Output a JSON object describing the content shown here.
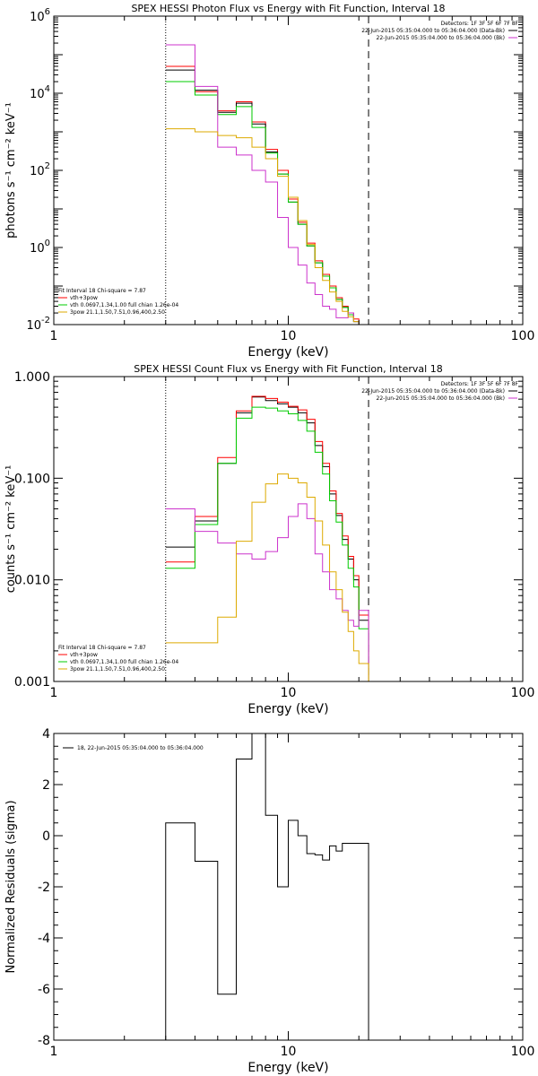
{
  "chart_data": [
    {
      "type": "line",
      "title": "SPEX HESSI Photon Flux vs Energy with Fit Function, Interval 18",
      "xlabel": "Energy (keV)",
      "ylabel": "photons s⁻¹ cm⁻² keV⁻¹",
      "xscale": "log",
      "yscale": "log",
      "xlim": [
        1,
        100
      ],
      "ylim": [
        0.01,
        1000000
      ],
      "xticks": [
        {
          "v": 1,
          "label": "1"
        },
        {
          "v": 10,
          "label": "10"
        },
        {
          "v": 100,
          "label": "100"
        }
      ],
      "yticks": [
        {
          "v": 0.01,
          "base": "10",
          "exp": "-2"
        },
        {
          "v": 1,
          "base": "10",
          "exp": "0"
        },
        {
          "v": 100,
          "base": "10",
          "exp": "2"
        },
        {
          "v": 10000,
          "base": "10",
          "exp": "4"
        },
        {
          "v": 1000000,
          "base": "10",
          "exp": "6"
        }
      ],
      "vlines": [
        {
          "x": 3.0,
          "style": "dotted"
        },
        {
          "x": 22.0,
          "style": "dashed"
        }
      ],
      "edges": [
        3.0,
        4.0,
        5.0,
        6.0,
        7.0,
        8.0,
        9.0,
        10.0,
        11.0,
        12.0,
        13.0,
        14.0,
        15.0,
        16.0,
        17.0,
        18.0,
        19.0,
        20.0,
        22.0
      ],
      "series": [
        {
          "color": "#ff0000",
          "values": [
            50000,
            11000,
            3500,
            6000,
            1800,
            350,
            100,
            18,
            4.5,
            1.3,
            0.45,
            0.2,
            0.1,
            0.05,
            0.03,
            0.02,
            0.014,
            0.009
          ]
        },
        {
          "color": "#000000",
          "values": [
            40000,
            12000,
            3200,
            5500,
            1600,
            300,
            80,
            15,
            4.0,
            1.1,
            0.4,
            0.18,
            0.09,
            0.045,
            0.028,
            0.018,
            0.012,
            0.008
          ]
        },
        {
          "color": "#00cc00",
          "values": [
            20000,
            9000,
            2800,
            4500,
            1300,
            280,
            80,
            15,
            4.0,
            1.1,
            0.4,
            0.18,
            0.09,
            0.045,
            0.028,
            0.018,
            0.012,
            0.006
          ]
        },
        {
          "color": "#cc33cc",
          "values": [
            180000,
            15000,
            400,
            250,
            100,
            50,
            6,
            1.0,
            0.35,
            0.12,
            0.06,
            0.03,
            0.025,
            0.015,
            0.015,
            0.02,
            0.012,
            0.009
          ]
        },
        {
          "color": "#ddaa00",
          "values": [
            1200,
            1000,
            800,
            700,
            400,
            200,
            70,
            20,
            5.0,
            1.2,
            0.3,
            0.14,
            0.07,
            0.04,
            0.022,
            0.016,
            0.012,
            0.008
          ]
        }
      ],
      "legend_left": [
        "Fit Interval 18   Chi-square = 7.87",
        "vth+3pow",
        "vth 0.0697,1.34,1.00  full chian 1.26e-04",
        "3pow 21.1,1.50,7.51,0.96,400,2.50"
      ],
      "legend_left_colors": [
        "#000000",
        "#ff0000",
        "#00cc00",
        "#ddaa00"
      ],
      "legend_right": [
        "Detectors: 1F 3F 5F 6F 7F 8F",
        "22-Jun-2015 05:35:04.000 to 05:36:04.000 (Data-Bk)",
        "22-Jun-2015 05:35:04.000 to 05:36:04.000 (Bk)"
      ],
      "legend_right_colors": [
        "",
        "#000000",
        "#cc33cc"
      ]
    },
    {
      "type": "line",
      "title": "SPEX HESSI Count Flux vs Energy with Fit Function, Interval 18",
      "xlabel": "Energy (keV)",
      "ylabel": "counts s⁻¹ cm⁻² keV⁻¹",
      "xscale": "log",
      "yscale": "log",
      "xlim": [
        1,
        100
      ],
      "ylim": [
        0.001,
        1.0
      ],
      "xticks": [
        {
          "v": 1,
          "label": "1"
        },
        {
          "v": 10,
          "label": "10"
        },
        {
          "v": 100,
          "label": "100"
        }
      ],
      "yticks": [
        {
          "v": 0.001,
          "label": "0.001"
        },
        {
          "v": 0.01,
          "label": "0.010"
        },
        {
          "v": 0.1,
          "label": "0.100"
        },
        {
          "v": 1.0,
          "label": "1.000"
        }
      ],
      "vlines": [
        {
          "x": 3.0,
          "style": "dotted"
        },
        {
          "x": 22.0,
          "style": "dashed"
        }
      ],
      "edges": [
        3.0,
        4.0,
        5.0,
        6.0,
        7.0,
        8.0,
        9.0,
        10.0,
        11.0,
        12.0,
        13.0,
        14.0,
        15.0,
        16.0,
        17.0,
        18.0,
        19.0,
        20.0,
        22.0
      ],
      "series": [
        {
          "color": "#000000",
          "values": [
            0.021,
            0.038,
            0.14,
            0.44,
            0.63,
            0.58,
            0.54,
            0.5,
            0.44,
            0.35,
            0.21,
            0.13,
            0.07,
            0.043,
            0.025,
            0.016,
            0.01,
            0.004
          ]
        },
        {
          "color": "#ff0000",
          "values": [
            0.015,
            0.042,
            0.16,
            0.46,
            0.64,
            0.61,
            0.56,
            0.51,
            0.47,
            0.38,
            0.23,
            0.14,
            0.075,
            0.045,
            0.027,
            0.017,
            0.011,
            0.0045
          ]
        },
        {
          "color": "#00cc00",
          "values": [
            0.013,
            0.035,
            0.14,
            0.39,
            0.5,
            0.49,
            0.46,
            0.43,
            0.37,
            0.29,
            0.18,
            0.11,
            0.06,
            0.037,
            0.022,
            0.013,
            0.0085,
            0.0033
          ]
        },
        {
          "color": "#cc33cc",
          "values": [
            0.05,
            0.03,
            0.023,
            0.018,
            0.016,
            0.019,
            0.026,
            0.042,
            0.056,
            0.04,
            0.018,
            0.012,
            0.008,
            0.0065,
            0.005,
            0.004,
            0.0035,
            0.005
          ]
        },
        {
          "color": "#ddaa00",
          "values": [
            0.0024,
            0.0024,
            0.0043,
            0.024,
            0.058,
            0.088,
            0.11,
            0.1,
            0.09,
            0.065,
            0.038,
            0.022,
            0.012,
            0.008,
            0.0048,
            0.0031,
            0.002,
            0.0015
          ]
        }
      ],
      "legend_left": [
        "Fit Interval 18   Chi-square = 7.87",
        "vth+3pow",
        "vth 0.0697,1.34,1.00  full chian 1.26e-04",
        "3pow 21.1,1.50,7.51,0.96,400,2.50"
      ],
      "legend_left_colors": [
        "#000000",
        "#ff0000",
        "#00cc00",
        "#ddaa00"
      ],
      "legend_right": [
        "Detectors: 1F 3F 5F 6F 7F 8F",
        "22-Jun-2015 05:35:04.000 to 05:36:04.000 (Data-Bk)",
        "22-Jun-2015 05:35:04.000 to 05:36:04.000 (Bk)"
      ],
      "legend_right_colors": [
        "",
        "#000000",
        "#cc33cc"
      ]
    },
    {
      "type": "line",
      "title": "",
      "xlabel": "Energy (keV)",
      "ylabel": "Normalized Residuals (sigma)",
      "xscale": "log",
      "yscale": "linear",
      "xlim": [
        1,
        100
      ],
      "ylim": [
        -8,
        4
      ],
      "xticks": [
        {
          "v": 1,
          "label": "1"
        },
        {
          "v": 10,
          "label": "10"
        },
        {
          "v": 100,
          "label": "100"
        }
      ],
      "yticks": [
        {
          "v": -8,
          "label": "-8"
        },
        {
          "v": -6,
          "label": "-6"
        },
        {
          "v": -4,
          "label": "-4"
        },
        {
          "v": -2,
          "label": "-2"
        },
        {
          "v": 0,
          "label": "0"
        },
        {
          "v": 2,
          "label": "2"
        },
        {
          "v": 4,
          "label": "4"
        }
      ],
      "vlines": [],
      "edges": [
        3.0,
        4.0,
        5.0,
        6.0,
        7.0,
        8.0,
        9.0,
        10.0,
        11.0,
        12.0,
        13.0,
        14.0,
        15.0,
        16.0,
        17.0,
        18.0,
        19.0,
        20.0,
        22.0
      ],
      "series": [
        {
          "color": "#000000",
          "values": [
            0.5,
            -1.0,
            -6.2,
            3.0,
            4.0,
            0.8,
            -2.0,
            0.6,
            0.0,
            -0.7,
            -0.75,
            -0.95,
            -0.4,
            -0.6,
            -0.3,
            -0.3,
            -0.3,
            -0.3
          ]
        }
      ],
      "legend_left": [],
      "legend_left_colors": [],
      "legend_right": [],
      "legend_right_colors": [],
      "legend_topleft": "18, 22-Jun-2015 05:35:04.000 to 05:36:04.000"
    }
  ]
}
